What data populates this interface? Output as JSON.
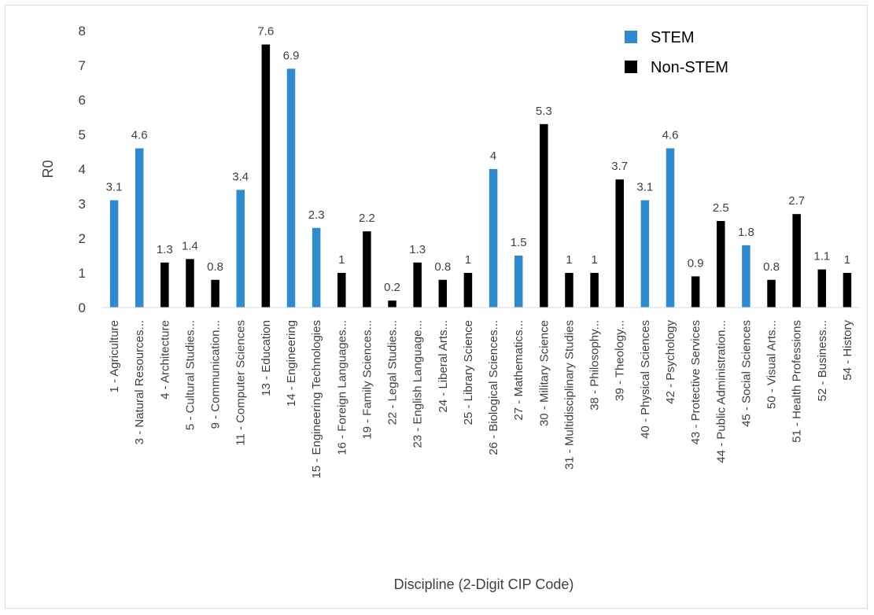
{
  "chart_data": {
    "type": "bar",
    "title": "",
    "xlabel": "Discipline (2-Digit CIP Code)",
    "ylabel": "R0",
    "ylim": [
      0,
      8
    ],
    "yticks": [
      "0",
      "1",
      "2",
      "3",
      "4",
      "5",
      "6",
      "7",
      "8"
    ],
    "grid": false,
    "legend_position": "top-right",
    "legend": [
      {
        "label": "STEM",
        "color": "#2e8bd0"
      },
      {
        "label": "Non-STEM",
        "color": "#000000"
      }
    ],
    "categories": [
      "1 - Agriculture",
      "3 - Natural Resources...",
      "4 - Architecture",
      "5 - Cultural Studies...",
      "9 - Communication...",
      "11 - Computer Sciences",
      "13 - Education",
      "14 - Engineering",
      "15 - Engineering Technologies",
      "16 - Foreign Languages...",
      "19 - Family Sciences...",
      "22 - Legal Studies...",
      "23 - English Language...",
      "24 - Liberal Arts...",
      "25 - Library Science",
      "26 - Biological Sciences...",
      "27 - Mathematics...",
      "30 - Military Science",
      "31 - Multidisciplinary Studies",
      "38 - Philosophy...",
      "39 - Theology...",
      "40 - Physical Sciences",
      "42 - Psychology",
      "43 - Protective Services",
      "44 - Public Administration...",
      "45 - Social Sciences",
      "50 - Visual Arts...",
      "51 - Health Professions",
      "52 - Business...",
      "54 - History"
    ],
    "values": [
      3.1,
      4.6,
      1.3,
      1.4,
      0.8,
      3.4,
      7.6,
      6.9,
      2.3,
      1,
      2.2,
      0.2,
      1.3,
      0.8,
      1,
      4,
      1.5,
      5.3,
      1,
      1,
      3.7,
      3.1,
      4.6,
      0.9,
      2.5,
      1.8,
      0.8,
      2.7,
      1.1,
      1
    ],
    "group": [
      "STEM",
      "STEM",
      "Non-STEM",
      "Non-STEM",
      "Non-STEM",
      "STEM",
      "Non-STEM",
      "STEM",
      "STEM",
      "Non-STEM",
      "Non-STEM",
      "Non-STEM",
      "Non-STEM",
      "Non-STEM",
      "Non-STEM",
      "STEM",
      "STEM",
      "Non-STEM",
      "Non-STEM",
      "Non-STEM",
      "Non-STEM",
      "STEM",
      "STEM",
      "Non-STEM",
      "Non-STEM",
      "STEM",
      "Non-STEM",
      "Non-STEM",
      "Non-STEM",
      "Non-STEM"
    ]
  }
}
